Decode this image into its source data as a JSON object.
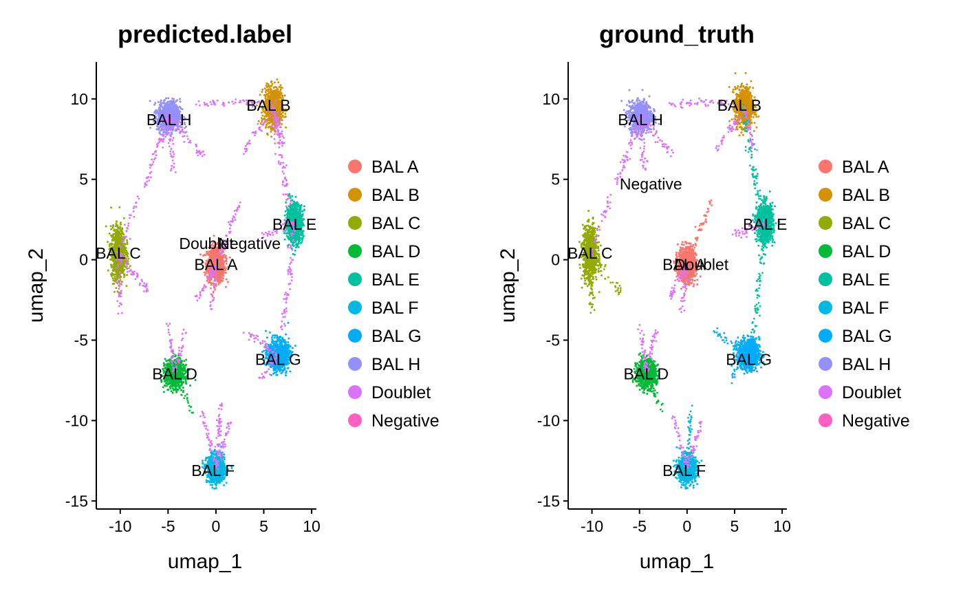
{
  "chart_data": [
    {
      "type": "scatter",
      "title": "predicted.label",
      "xlabel": "umap_1",
      "ylabel": "umap_2",
      "xlim": [
        -12.5,
        10.5
      ],
      "ylim": [
        -15.5,
        12.3
      ],
      "xticks": [
        -10,
        -5,
        0,
        5,
        10
      ],
      "yticks": [
        -15,
        -10,
        -5,
        0,
        5,
        10
      ],
      "grid": false,
      "legend_position": "right",
      "clusters": [
        {
          "name": "BAL A",
          "color": "#F8766D",
          "center": [
            0.0,
            -0.3
          ],
          "spread": [
            1.1,
            1.3
          ],
          "label_pos": [
            0.0,
            -0.3
          ]
        },
        {
          "name": "BAL B",
          "color": "#D39200",
          "center": [
            6.0,
            9.5
          ],
          "spread": [
            1.1,
            1.4
          ],
          "label_pos": [
            5.5,
            9.6
          ]
        },
        {
          "name": "BAL C",
          "color": "#93AA00",
          "center": [
            -10.2,
            0.4
          ],
          "spread": [
            0.9,
            1.9
          ],
          "label_pos": [
            -10.2,
            0.4
          ]
        },
        {
          "name": "BAL D",
          "color": "#00BA38",
          "center": [
            -4.3,
            -7.1
          ],
          "spread": [
            1.2,
            1.0
          ],
          "label_pos": [
            -4.3,
            -7.1
          ]
        },
        {
          "name": "BAL E",
          "color": "#00C19F",
          "center": [
            8.2,
            2.3
          ],
          "spread": [
            1.0,
            1.4
          ],
          "label_pos": [
            8.2,
            2.2
          ]
        },
        {
          "name": "BAL F",
          "color": "#00B9E3",
          "center": [
            0.0,
            -13.0
          ],
          "spread": [
            1.1,
            1.0
          ],
          "label_pos": [
            -0.3,
            -13.1
          ]
        },
        {
          "name": "BAL G",
          "color": "#00ADFA",
          "center": [
            6.5,
            -5.9
          ],
          "spread": [
            1.3,
            1.1
          ],
          "label_pos": [
            6.5,
            -6.2
          ]
        },
        {
          "name": "BAL H",
          "color": "#9590FF",
          "center": [
            -4.9,
            8.9
          ],
          "spread": [
            1.4,
            1.1
          ],
          "label_pos": [
            -4.9,
            8.7
          ]
        },
        {
          "name": "Doublet",
          "color": "#DB72FB",
          "center": null,
          "label_pos": [
            -1.0,
            1.0
          ]
        },
        {
          "name": "Negative",
          "color": "#FF61C3",
          "center": null,
          "label_pos": [
            3.5,
            1.0
          ]
        }
      ]
    },
    {
      "type": "scatter",
      "title": "ground_truth",
      "xlabel": "umap_1",
      "ylabel": "umap_2",
      "xlim": [
        -12.5,
        10.5
      ],
      "ylim": [
        -15.5,
        12.3
      ],
      "xticks": [
        -10,
        -5,
        0,
        5,
        10
      ],
      "yticks": [
        -15,
        -10,
        -5,
        0,
        5,
        10
      ],
      "grid": false,
      "legend_position": "right",
      "clusters": [
        {
          "name": "BAL A",
          "color": "#F8766D",
          "center": [
            0.0,
            -0.3
          ],
          "spread": [
            1.1,
            1.3
          ],
          "label_pos": [
            -0.3,
            -0.3
          ]
        },
        {
          "name": "BAL B",
          "color": "#D39200",
          "center": [
            6.0,
            9.5
          ],
          "spread": [
            1.1,
            1.4
          ],
          "label_pos": [
            5.5,
            9.6
          ]
        },
        {
          "name": "BAL C",
          "color": "#93AA00",
          "center": [
            -10.2,
            0.4
          ],
          "spread": [
            0.9,
            1.9
          ],
          "label_pos": [
            -10.2,
            0.4
          ]
        },
        {
          "name": "BAL D",
          "color": "#00BA38",
          "center": [
            -4.3,
            -7.1
          ],
          "spread": [
            1.2,
            1.0
          ],
          "label_pos": [
            -4.3,
            -7.1
          ]
        },
        {
          "name": "BAL E",
          "color": "#00C19F",
          "center": [
            8.2,
            2.3
          ],
          "spread": [
            1.0,
            1.4
          ],
          "label_pos": [
            8.2,
            2.2
          ]
        },
        {
          "name": "BAL F",
          "color": "#00B9E3",
          "center": [
            0.0,
            -13.0
          ],
          "spread": [
            1.1,
            1.0
          ],
          "label_pos": [
            -0.3,
            -13.1
          ]
        },
        {
          "name": "BAL G",
          "color": "#00ADFA",
          "center": [
            6.5,
            -5.9
          ],
          "spread": [
            1.3,
            1.1
          ],
          "label_pos": [
            6.5,
            -6.2
          ]
        },
        {
          "name": "BAL H",
          "color": "#9590FF",
          "center": [
            -4.9,
            8.9
          ],
          "spread": [
            1.4,
            1.1
          ],
          "label_pos": [
            -4.9,
            8.7
          ]
        },
        {
          "name": "Doublet",
          "color": "#DB72FB",
          "center": null,
          "label_pos": [
            1.5,
            -0.3
          ]
        },
        {
          "name": "Negative",
          "color": "#FF61C3",
          "center": null,
          "label_pos": [
            -3.8,
            4.7
          ]
        }
      ]
    }
  ]
}
